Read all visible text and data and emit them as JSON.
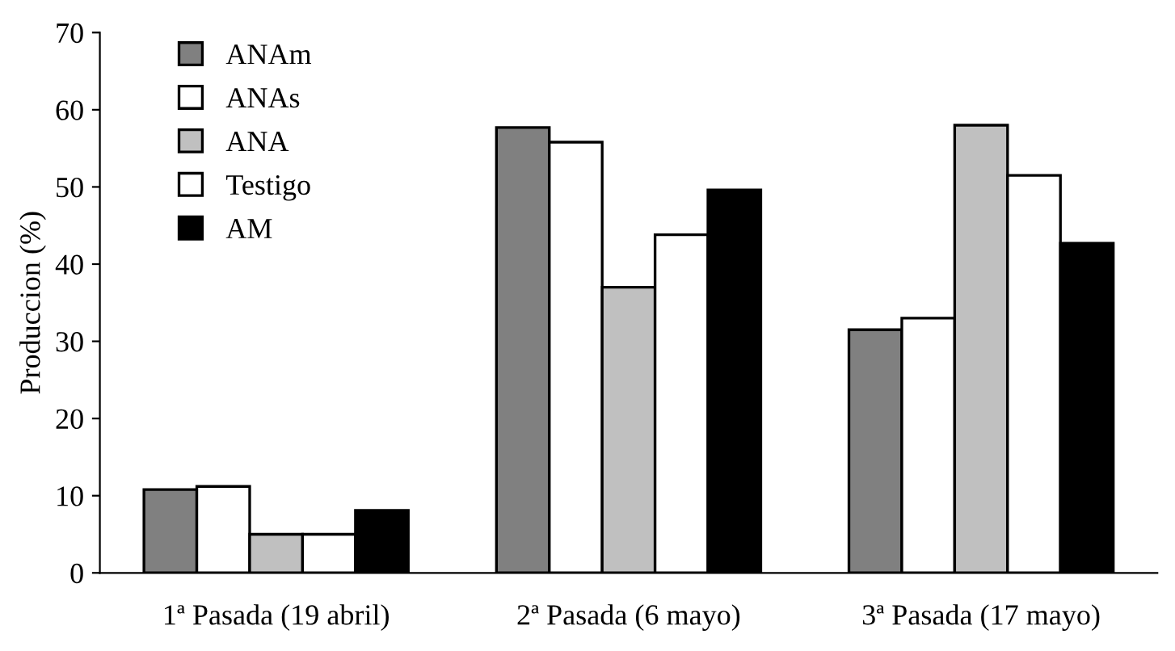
{
  "chart_data": {
    "type": "bar",
    "ylabel": "Produccion (%)",
    "categories": [
      "1ª Pasada (19 abril)",
      "2ª Pasada (6 mayo)",
      "3ª Pasada (17 mayo)"
    ],
    "series": [
      {
        "name": "ANAm",
        "color": "#808080",
        "values": [
          10.8,
          57.7,
          31.5
        ]
      },
      {
        "name": "ANAs",
        "color": "#ffffff",
        "values": [
          11.2,
          55.8,
          33
        ]
      },
      {
        "name": "ANA",
        "color": "#c0c0c0",
        "values": [
          5,
          37,
          58
        ]
      },
      {
        "name": "Testigo",
        "color": "#ffffff",
        "values": [
          5,
          43.8,
          51.5
        ]
      },
      {
        "name": "AM",
        "color": "#000000",
        "values": [
          8.1,
          49.6,
          42.7
        ]
      }
    ],
    "ylim": [
      0,
      70
    ],
    "yticks": [
      0,
      10,
      20,
      30,
      40,
      50,
      60,
      70
    ],
    "grid": false,
    "legend": "top left"
  }
}
